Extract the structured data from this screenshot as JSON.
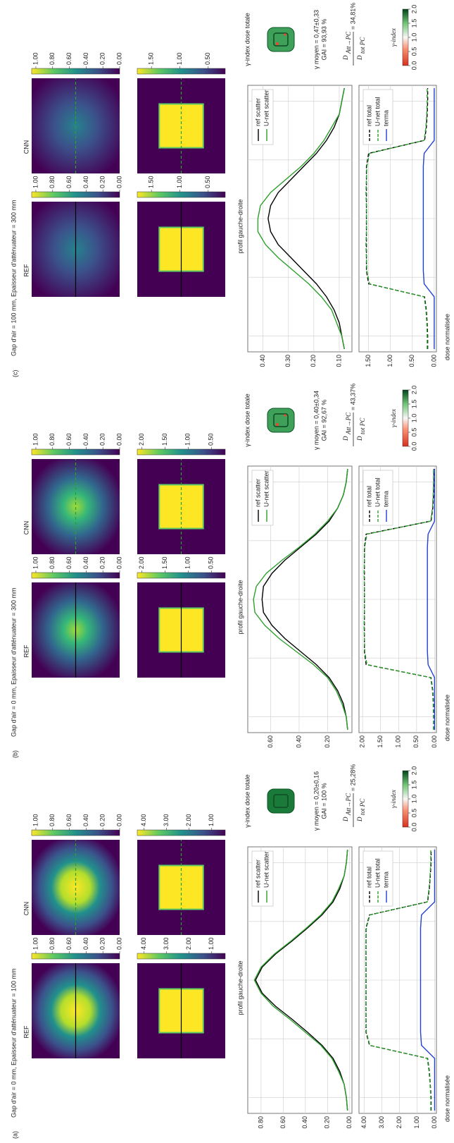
{
  "shared": {
    "ref_label": "REF",
    "cnn_label": "CNN",
    "profile_title": "profil gauche-droite",
    "ylabel": "dose normalisée",
    "gamma_title": "γ-index dose totale",
    "gamma_colorbar": {
      "label": "γ-index",
      "lim": [
        0,
        2
      ],
      "ticks": [
        {
          "value": 2,
          "label": "2.0"
        },
        {
          "value": 1.5,
          "label": "1.5"
        },
        {
          "value": 1,
          "label": "1.0"
        },
        {
          "value": 0.5,
          "label": "0.5"
        },
        {
          "value": 0,
          "label": "0.0"
        }
      ]
    },
    "formula": {
      "symbol": "D",
      "num_sub": "Att→PC",
      "den_sub": "tot PC"
    }
  },
  "panels": [
    {
      "label": "(a)",
      "title": "Gap d'air = 0 mm, Epaisseur d'atténuateur = 100 mm",
      "colorbars": [
        {
          "lim": [
            0,
            1.05
          ],
          "ticks": [
            {
              "value": 1,
              "label": "1.00"
            },
            {
              "value": 0.8,
              "label": "0.80"
            },
            {
              "value": 0.6,
              "label": "0.60"
            },
            {
              "value": 0.4,
              "label": "0.40"
            },
            {
              "value": 0.2,
              "label": "0.20"
            },
            {
              "value": 0,
              "label": "0.00"
            }
          ]
        },
        {
          "lim": [
            0.4,
            4.3
          ],
          "ticks": [
            {
              "value": 4,
              "label": "4.00"
            },
            {
              "value": 3,
              "label": "3.00"
            },
            {
              "value": 2,
              "label": "2.00"
            },
            {
              "value": 1,
              "label": "1.00"
            }
          ]
        }
      ],
      "scatter": {
        "type": "line",
        "ylim": [
          -0.02,
          0.92
        ],
        "yticks": [
          {
            "value": 0,
            "label": "0.00"
          },
          {
            "value": 0.2,
            "label": "0.20"
          },
          {
            "value": 0.4,
            "label": "0.40"
          },
          {
            "value": 0.6,
            "label": "0.60"
          },
          {
            "value": 0.8,
            "label": "0.80"
          }
        ],
        "series": [
          {
            "name": "ref scatter",
            "color": "#000000",
            "dashed": false,
            "values": [
              0.02,
              0.03,
              0.05,
              0.09,
              0.15,
              0.25,
              0.38,
              0.52,
              0.67,
              0.79,
              0.85,
              0.79,
              0.67,
              0.52,
              0.38,
              0.25,
              0.15,
              0.09,
              0.05,
              0.03,
              0.02
            ]
          },
          {
            "name": "U-net scatter",
            "color": "#2ca02c",
            "dashed": false,
            "values": [
              0.02,
              0.03,
              0.05,
              0.1,
              0.16,
              0.26,
              0.4,
              0.54,
              0.69,
              0.8,
              0.86,
              0.8,
              0.68,
              0.53,
              0.39,
              0.26,
              0.16,
              0.1,
              0.05,
              0.03,
              0.02
            ]
          }
        ]
      },
      "total": {
        "type": "line",
        "ylim": [
          -0.1,
          4.3
        ],
        "yticks": [
          {
            "value": 0,
            "label": "0.00"
          },
          {
            "value": 1,
            "label": "1.00"
          },
          {
            "value": 2,
            "label": "2.00"
          },
          {
            "value": 3,
            "label": "3.00"
          },
          {
            "value": 4,
            "label": "4.00"
          }
        ],
        "series": [
          {
            "name": "ref total",
            "color": "#000000",
            "dashed": true,
            "values": [
              0.2,
              0.2,
              0.25,
              0.3,
              0.4,
              3.7,
              3.9,
              3.9,
              3.9,
              3.9,
              3.9,
              3.9,
              3.9,
              3.9,
              3.9,
              3.7,
              0.4,
              0.3,
              0.25,
              0.2,
              0.2
            ]
          },
          {
            "name": "U-net total",
            "color": "#2ca02c",
            "dashed": true,
            "values": [
              0.22,
              0.22,
              0.26,
              0.32,
              0.42,
              3.68,
              3.88,
              3.9,
              3.91,
              3.9,
              3.9,
              3.9,
              3.91,
              3.9,
              3.88,
              3.68,
              0.42,
              0.32,
              0.26,
              0.22,
              0.22
            ]
          },
          {
            "name": "terma",
            "color": "#1f3fd6",
            "dashed": false,
            "values": [
              0,
              0,
              0,
              0,
              0,
              0.75,
              0.8,
              0.8,
              0.8,
              0.8,
              0.8,
              0.8,
              0.8,
              0.8,
              0.8,
              0.75,
              0,
              0,
              0,
              0,
              0
            ]
          }
        ]
      },
      "gamma": {
        "mean": "γ moyen = 0,20±0,16",
        "gai": "GAI = 100 %",
        "ratio": "= 25,28%"
      }
    },
    {
      "label": "(b)",
      "title": "Gap d'air = 0 mm, Epaisseur d'atténuateur = 300 mm",
      "colorbars": [
        {
          "lim": [
            0,
            1.05
          ],
          "ticks": [
            {
              "value": 1,
              "label": "1.00"
            },
            {
              "value": 0.8,
              "label": "0.80"
            },
            {
              "value": 0.6,
              "label": "0.60"
            },
            {
              "value": 0.4,
              "label": "0.40"
            },
            {
              "value": 0.2,
              "label": "0.20"
            },
            {
              "value": 0,
              "label": "0.00"
            }
          ]
        },
        {
          "lim": [
            0.2,
            2.1
          ],
          "ticks": [
            {
              "value": 2,
              "label": "2.00"
            },
            {
              "value": 1.5,
              "label": "1.50"
            },
            {
              "value": 1,
              "label": "1.00"
            },
            {
              "value": 0.5,
              "label": "0.50"
            }
          ]
        }
      ],
      "scatter": {
        "type": "line",
        "ylim": [
          0.03,
          0.76
        ],
        "yticks": [
          {
            "value": 0.2,
            "label": "0.20"
          },
          {
            "value": 0.4,
            "label": "0.40"
          },
          {
            "value": 0.6,
            "label": "0.60"
          }
        ],
        "series": [
          {
            "name": "ref scatter",
            "color": "#000000",
            "dashed": false,
            "values": [
              0.06,
              0.07,
              0.09,
              0.13,
              0.19,
              0.28,
              0.39,
              0.5,
              0.59,
              0.65,
              0.66,
              0.65,
              0.59,
              0.5,
              0.39,
              0.28,
              0.19,
              0.13,
              0.09,
              0.07,
              0.06
            ]
          },
          {
            "name": "U-net scatter",
            "color": "#2ca02c",
            "dashed": false,
            "values": [
              0.06,
              0.07,
              0.1,
              0.14,
              0.2,
              0.3,
              0.42,
              0.54,
              0.64,
              0.71,
              0.72,
              0.7,
              0.63,
              0.52,
              0.4,
              0.29,
              0.2,
              0.13,
              0.09,
              0.07,
              0.06
            ]
          }
        ]
      },
      "total": {
        "type": "line",
        "ylim": [
          -0.05,
          2.1
        ],
        "yticks": [
          {
            "value": 0,
            "label": "0.00"
          },
          {
            "value": 0.5,
            "label": "0.50"
          },
          {
            "value": 1,
            "label": "1.00"
          },
          {
            "value": 1.5,
            "label": "1.50"
          },
          {
            "value": 2,
            "label": "2.00"
          }
        ],
        "series": [
          {
            "name": "ref total",
            "color": "#000000",
            "dashed": true,
            "values": [
              0.02,
              0.02,
              0.03,
              0.05,
              0.1,
              1.9,
              1.95,
              1.95,
              1.95,
              1.95,
              1.95,
              1.95,
              1.95,
              1.95,
              1.95,
              1.9,
              0.1,
              0.05,
              0.03,
              0.02,
              0.02
            ]
          },
          {
            "name": "U-net total",
            "color": "#2ca02c",
            "dashed": true,
            "values": [
              0.03,
              0.03,
              0.04,
              0.06,
              0.11,
              1.88,
              1.94,
              1.95,
              1.96,
              1.95,
              1.95,
              1.95,
              1.96,
              1.95,
              1.94,
              1.88,
              0.11,
              0.06,
              0.04,
              0.03,
              0.03
            ]
          },
          {
            "name": "terma",
            "color": "#1f3fd6",
            "dashed": false,
            "values": [
              0,
              0,
              0,
              0,
              0,
              0.18,
              0.2,
              0.2,
              0.2,
              0.2,
              0.2,
              0.2,
              0.2,
              0.2,
              0.2,
              0.18,
              0,
              0,
              0,
              0,
              0
            ]
          }
        ]
      },
      "gamma": {
        "mean": "γ moyen = 0,40±0,34",
        "gai": "GAI = 92,67 %",
        "ratio": "= 43,37%"
      }
    },
    {
      "label": "(c)",
      "title": "Gap d'air = 100 mm, Epaisseur d'atténuateur = 300 mm",
      "colorbars": [
        {
          "lim": [
            0,
            1.05
          ],
          "ticks": [
            {
              "value": 1,
              "label": "1.00"
            },
            {
              "value": 0.8,
              "label": "0.80"
            },
            {
              "value": 0.6,
              "label": "0.60"
            },
            {
              "value": 0.4,
              "label": "0.40"
            },
            {
              "value": 0.2,
              "label": "0.20"
            },
            {
              "value": 0,
              "label": "0.00"
            }
          ]
        },
        {
          "lim": [
            0.2,
            1.75
          ],
          "ticks": [
            {
              "value": 1.5,
              "label": "1.50"
            },
            {
              "value": 1,
              "label": "1.00"
            },
            {
              "value": 0.5,
              "label": "0.50"
            }
          ]
        }
      ],
      "scatter": {
        "type": "line",
        "ylim": [
          0.05,
          0.46
        ],
        "yticks": [
          {
            "value": 0.1,
            "label": "0.10"
          },
          {
            "value": 0.2,
            "label": "0.20"
          },
          {
            "value": 0.3,
            "label": "0.30"
          },
          {
            "value": 0.4,
            "label": "0.40"
          }
        ],
        "series": [
          {
            "name": "ref scatter",
            "color": "#000000",
            "dashed": false,
            "values": [
              0.08,
              0.09,
              0.1,
              0.12,
              0.15,
              0.19,
              0.24,
              0.29,
              0.34,
              0.37,
              0.38,
              0.37,
              0.34,
              0.29,
              0.24,
              0.19,
              0.15,
              0.12,
              0.1,
              0.09,
              0.08
            ]
          },
          {
            "name": "U-net scatter",
            "color": "#2ca02c",
            "dashed": false,
            "values": [
              0.08,
              0.09,
              0.11,
              0.13,
              0.17,
              0.22,
              0.28,
              0.34,
              0.39,
              0.42,
              0.42,
              0.41,
              0.37,
              0.31,
              0.25,
              0.2,
              0.16,
              0.13,
              0.1,
              0.09,
              0.08
            ]
          }
        ]
      },
      "total": {
        "type": "line",
        "ylim": [
          -0.05,
          1.72
        ],
        "yticks": [
          {
            "value": 0,
            "label": "0.00"
          },
          {
            "value": 0.5,
            "label": "0.50"
          },
          {
            "value": 1,
            "label": "1.00"
          },
          {
            "value": 1.5,
            "label": "1.50"
          }
        ],
        "series": [
          {
            "name": "ref total",
            "color": "#000000",
            "dashed": true,
            "values": [
              0.15,
              0.15,
              0.16,
              0.18,
              0.22,
              1.5,
              1.55,
              1.55,
              1.55,
              1.55,
              1.55,
              1.55,
              1.55,
              1.55,
              1.55,
              1.5,
              0.22,
              0.18,
              0.16,
              0.15,
              0.15
            ]
          },
          {
            "name": "U-net total",
            "color": "#2ca02c",
            "dashed": true,
            "values": [
              0.16,
              0.16,
              0.17,
              0.19,
              0.23,
              1.48,
              1.54,
              1.55,
              1.56,
              1.55,
              1.55,
              1.55,
              1.56,
              1.55,
              1.54,
              1.48,
              0.23,
              0.19,
              0.17,
              0.16,
              0.16
            ]
          },
          {
            "name": "terma",
            "color": "#1f3fd6",
            "dashed": false,
            "values": [
              0,
              0,
              0,
              0,
              0,
              0.23,
              0.25,
              0.25,
              0.25,
              0.25,
              0.25,
              0.25,
              0.25,
              0.25,
              0.25,
              0.23,
              0,
              0,
              0,
              0,
              0
            ]
          }
        ]
      },
      "gamma": {
        "mean": "γ moyen = 0,47±0,33",
        "gai": "GAI = 93,93 %",
        "ratio": "= 34,81%"
      }
    }
  ]
}
